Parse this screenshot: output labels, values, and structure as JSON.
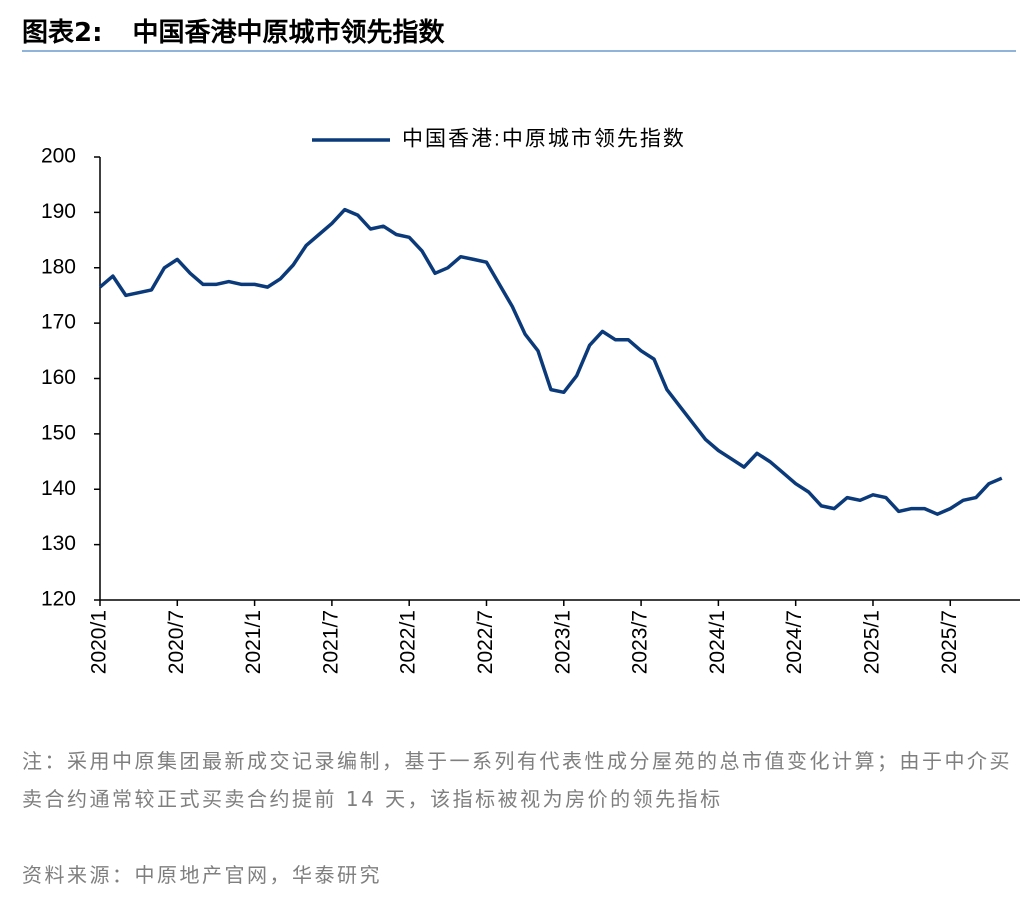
{
  "header": {
    "label": "图表2:",
    "title": "中国香港中原城市领先指数"
  },
  "chart_data": {
    "type": "line",
    "categories": [
      "2020/1",
      null,
      null,
      null,
      null,
      null,
      "2020/7",
      null,
      null,
      null,
      null,
      null,
      "2021/1",
      null,
      null,
      null,
      null,
      null,
      "2021/7",
      null,
      null,
      null,
      null,
      null,
      "2022/1",
      null,
      null,
      null,
      null,
      null,
      "2022/7",
      null,
      null,
      null,
      null,
      null,
      "2023/1",
      null,
      null,
      null,
      null,
      null,
      "2023/7",
      null,
      null,
      null,
      null,
      null,
      "2024/1",
      null,
      null,
      null,
      null,
      null,
      "2024/7",
      null,
      null,
      null,
      null,
      null,
      "2025/1",
      null,
      null,
      null,
      null,
      null,
      "2025/7",
      null,
      null,
      null,
      null
    ],
    "series": [
      {
        "name": "中国香港:中原城市领先指数",
        "color": "#0b3a7a",
        "values": [
          176.5,
          178.5,
          175,
          175.5,
          176,
          180,
          181.5,
          179,
          177,
          177,
          177.5,
          177,
          177,
          176.5,
          178,
          180.5,
          184,
          186,
          188,
          190.5,
          189.5,
          187,
          187.5,
          186,
          185.5,
          183,
          179,
          180,
          182,
          181.5,
          181,
          177,
          173,
          168,
          165,
          158,
          157.5,
          160.5,
          166,
          168.5,
          167,
          167,
          165,
          163.5,
          158,
          155,
          152,
          149,
          147,
          145.5,
          144,
          146.5,
          145,
          143,
          141,
          139.5,
          137,
          136.5,
          138.5,
          138,
          139,
          138.5,
          136,
          136.5,
          136.5,
          135.5,
          136.5,
          138,
          138.5,
          141,
          142
        ]
      }
    ],
    "ylim": [
      120,
      200
    ],
    "yticks": [
      120,
      130,
      140,
      150,
      160,
      170,
      180,
      190,
      200
    ],
    "legend": "top"
  },
  "note": "注：采用中原集团最新成交记录编制，基于一系列有代表性成分屋苑的总市值变化计算；由于中介买卖合约通常较正式买卖合约提前 14 天，该指标被视为房价的领先指标",
  "source": "资料来源：中原地产官网，华泰研究"
}
